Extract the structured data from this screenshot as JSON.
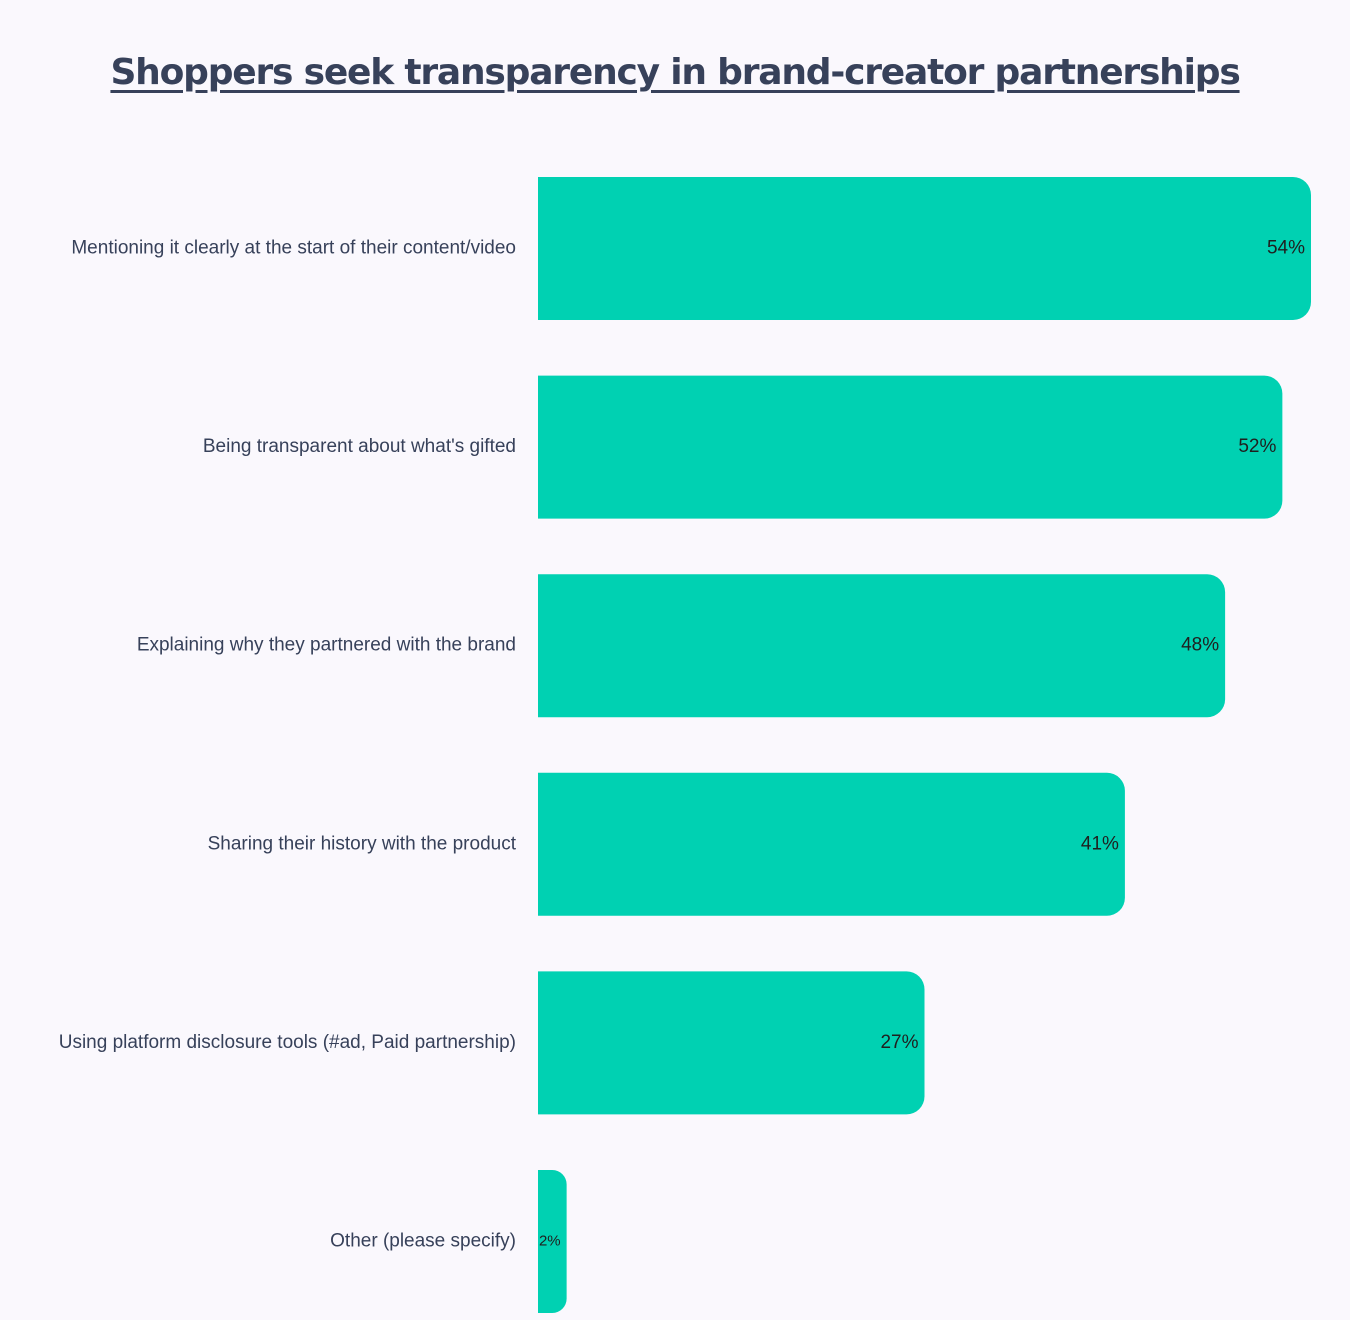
{
  "chart_data": {
    "type": "bar",
    "orientation": "horizontal",
    "title": "Shoppers seek transparency in brand-creator partnerships",
    "categories": [
      "Mentioning it clearly at the start of their content/video",
      "Being transparent about what's gifted",
      "Explaining why they partnered with the brand",
      "Sharing their history with the product",
      "Using platform disclosure tools (#ad, Paid partnership)",
      "Other (please specify)"
    ],
    "values": [
      54,
      52,
      48,
      41,
      27,
      2
    ],
    "value_labels": [
      "54%",
      "52%",
      "48%",
      "41%",
      "27%",
      "2%"
    ],
    "unit": "%",
    "xlim": [
      0,
      54
    ],
    "grid": false,
    "legend": "none",
    "colors": {
      "bar": "#00d1b2",
      "title": "#37415a",
      "category_label": "#37415a",
      "value_label": "#1f1f1f",
      "background": "#faf8fd"
    }
  }
}
